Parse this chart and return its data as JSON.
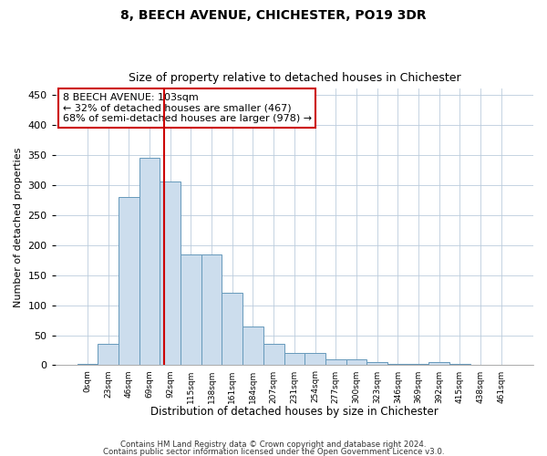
{
  "title1": "8, BEECH AVENUE, CHICHESTER, PO19 3DR",
  "title2": "Size of property relative to detached houses in Chichester",
  "xlabel": "Distribution of detached houses by size in Chichester",
  "ylabel": "Number of detached properties",
  "bar_labels": [
    "0sqm",
    "23sqm",
    "46sqm",
    "69sqm",
    "92sqm",
    "115sqm",
    "138sqm",
    "161sqm",
    "184sqm",
    "207sqm",
    "231sqm",
    "254sqm",
    "277sqm",
    "300sqm",
    "323sqm",
    "346sqm",
    "369sqm",
    "392sqm",
    "415sqm",
    "438sqm",
    "461sqm"
  ],
  "bar_heights": [
    3,
    35,
    280,
    345,
    305,
    185,
    185,
    120,
    65,
    35,
    20,
    20,
    10,
    10,
    5,
    3,
    2,
    6,
    2,
    1,
    0
  ],
  "bar_color": "#ccdded",
  "bar_edgecolor": "#6699bb",
  "vline_x": 3.72,
  "annotation_text": "8 BEECH AVENUE: 103sqm\n← 32% of detached houses are smaller (467)\n68% of semi-detached houses are larger (978) →",
  "annotation_box_color": "#ffffff",
  "annotation_box_edgecolor": "#cc0000",
  "vline_color": "#cc0000",
  "footer1": "Contains HM Land Registry data © Crown copyright and database right 2024.",
  "footer2": "Contains public sector information licensed under the Open Government Licence v3.0.",
  "ylim": [
    0,
    460
  ],
  "yticks": [
    0,
    50,
    100,
    150,
    200,
    250,
    300,
    350,
    400,
    450
  ],
  "background_color": "#ffffff",
  "grid_color": "#bbccdd"
}
